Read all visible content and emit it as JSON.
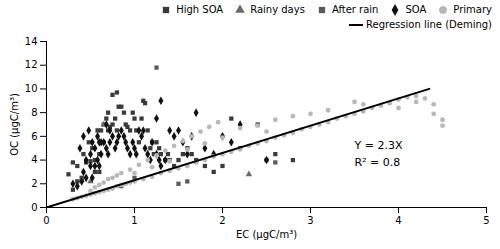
{
  "chart_data": {
    "type": "scatter",
    "xlabel": "EC (μgC/m³)",
    "ylabel": "OC (μgC/m³)",
    "xlim": [
      0,
      5
    ],
    "ylim": [
      0,
      14
    ],
    "xticks": [
      0,
      1,
      2,
      3,
      4,
      5
    ],
    "yticks": [
      0,
      2,
      4,
      6,
      8,
      10,
      12,
      14
    ],
    "grid": false,
    "legend": "top right",
    "annotations": [
      {
        "text": "Y = 2.3X",
        "x": 3.5,
        "y": 5.2
      },
      {
        "text": "R² = 0.8",
        "x": 3.5,
        "y": 3.8
      }
    ],
    "series": [
      {
        "name": "High SOA",
        "type": "scatter",
        "marker": "square",
        "color": "#3a3a3a",
        "x": [
          0.25,
          0.3,
          0.35,
          0.4,
          0.45,
          0.5,
          0.52,
          0.55,
          0.58,
          0.6,
          0.62,
          0.65,
          0.68,
          0.7,
          0.72,
          0.75,
          0.78,
          0.8,
          0.82,
          0.85,
          0.88,
          0.9,
          0.92,
          0.95,
          0.98,
          1.0,
          1.02,
          1.05,
          1.08,
          1.1,
          1.12,
          1.15,
          1.18,
          1.2,
          1.22,
          1.25,
          1.28,
          1.3,
          1.35,
          1.38,
          1.4,
          1.45,
          1.5,
          1.55,
          1.6,
          1.65,
          1.7,
          1.8,
          1.9,
          2.0,
          2.1,
          2.2,
          2.4,
          2.6,
          2.8,
          0.3,
          0.35,
          0.42,
          0.48,
          0.55,
          0.6,
          0.65,
          0.7,
          0.75,
          0.8
        ],
        "values": [
          2.8,
          3.8,
          2.2,
          2.5,
          3.8,
          3.9,
          5.0,
          4.0,
          6.5,
          4.5,
          6.5,
          7.0,
          7.5,
          8.0,
          6.8,
          9.5,
          7.5,
          9.7,
          8.5,
          8.5,
          8.0,
          7.0,
          6.8,
          6.5,
          8.0,
          7.5,
          6.5,
          5.5,
          7.5,
          9.0,
          8.8,
          6.5,
          5.0,
          5.5,
          4.5,
          5.5,
          5.0,
          4.5,
          4.0,
          4.5,
          4.0,
          3.5,
          4.0,
          4.5,
          5.0,
          4.5,
          4.0,
          3.5,
          3.0,
          3.5,
          7.5,
          5.0,
          7.0,
          4.5,
          4.0,
          1.5,
          3.5,
          4.5,
          5.5,
          3.0,
          3.0,
          5.5,
          6.5,
          7.0,
          6.5
        ]
      },
      {
        "name": "Rainy days",
        "type": "scatter",
        "marker": "triangle",
        "color": "#6a6a6a",
        "x": [
          0.4,
          0.5,
          0.65,
          2.3
        ],
        "values": [
          2.3,
          2.2,
          7.0,
          2.8
        ]
      },
      {
        "name": "After rain",
        "type": "scatter",
        "marker": "square",
        "color": "#5a5a5a",
        "x": [
          1.25,
          1.5,
          1.6,
          2.6,
          0.85,
          1.0,
          2.5
        ],
        "values": [
          11.8,
          2.0,
          2.2,
          3.8,
          1.8,
          2.5,
          4.0
        ]
      },
      {
        "name": "SOA",
        "type": "scatter",
        "marker": "diamond",
        "color": "#111111",
        "x": [
          0.3,
          0.35,
          0.4,
          0.42,
          0.45,
          0.5,
          0.52,
          0.55,
          0.58,
          0.6,
          0.62,
          0.65,
          0.68,
          0.7,
          0.72,
          0.75,
          0.78,
          0.8,
          0.82,
          0.85,
          0.88,
          0.9,
          0.92,
          0.95,
          0.98,
          1.0,
          1.02,
          1.05,
          1.08,
          1.1,
          1.12,
          1.15,
          1.18,
          1.2,
          1.25,
          1.28,
          1.3,
          1.35,
          1.4,
          1.45,
          1.5,
          1.55,
          1.6,
          1.65,
          1.7,
          1.8,
          1.9,
          2.0,
          2.1,
          2.2,
          2.5,
          0.45,
          0.5,
          0.55,
          0.6,
          1.25,
          1.3,
          0.38,
          0.42,
          0.48,
          0.52,
          0.58,
          0.62,
          0.68,
          0.72
        ],
        "values": [
          2.0,
          1.8,
          2.2,
          3.0,
          2.5,
          3.5,
          2.5,
          3.5,
          4.0,
          3.5,
          4.5,
          5.5,
          5.0,
          4.5,
          5.5,
          6.0,
          5.0,
          5.5,
          6.0,
          6.5,
          6.0,
          5.5,
          5.0,
          4.5,
          5.5,
          5.0,
          4.5,
          6.5,
          6.0,
          6.5,
          5.0,
          4.5,
          4.0,
          5.5,
          4.5,
          4.0,
          3.5,
          4.0,
          6.5,
          6.0,
          6.5,
          5.5,
          4.5,
          6.0,
          8.0,
          5.0,
          4.5,
          6.0,
          5.5,
          7.0,
          4.0,
          4.0,
          4.5,
          5.0,
          5.5,
          7.5,
          9.0,
          5.0,
          6.0,
          6.5,
          5.5,
          6.0,
          5.5,
          7.0,
          6.5
        ]
      },
      {
        "name": "Primary",
        "type": "scatter",
        "marker": "circle",
        "color": "#b8b8b8",
        "x": [
          0.3,
          0.35,
          0.4,
          0.45,
          0.5,
          0.55,
          0.6,
          0.65,
          0.7,
          0.75,
          0.8,
          0.85,
          0.9,
          0.95,
          1.0,
          1.1,
          1.2,
          1.3,
          1.4,
          1.5,
          1.6,
          1.7,
          1.8,
          1.9,
          2.0,
          2.1,
          2.2,
          2.3,
          2.4,
          2.5,
          2.6,
          2.7,
          2.8,
          2.9,
          3.0,
          3.1,
          3.2,
          3.3,
          3.4,
          3.5,
          3.6,
          3.7,
          3.8,
          3.9,
          4.0,
          4.1,
          4.2,
          4.3,
          4.4,
          4.5,
          0.5,
          0.6,
          0.7,
          0.8,
          1.0,
          1.2,
          1.4,
          1.6,
          1.8,
          2.0,
          2.5,
          3.0,
          3.5,
          4.0,
          4.5,
          0.55,
          0.65,
          0.75,
          0.85,
          0.95,
          1.05,
          1.15,
          1.25,
          1.35,
          1.45,
          1.55,
          1.65,
          1.75,
          1.85,
          1.95,
          2.2,
          2.4,
          2.6,
          2.8,
          3.2,
          3.6,
          4.2,
          4.4
        ],
        "values": [
          0.7,
          0.8,
          0.9,
          1.0,
          1.1,
          1.2,
          1.3,
          1.4,
          1.5,
          1.6,
          1.8,
          1.9,
          2.0,
          2.1,
          2.2,
          2.4,
          2.6,
          2.9,
          3.1,
          3.3,
          3.5,
          3.8,
          4.0,
          4.3,
          4.5,
          4.7,
          4.9,
          5.2,
          5.4,
          5.6,
          5.9,
          6.1,
          6.3,
          6.6,
          6.8,
          7.0,
          7.2,
          7.5,
          7.7,
          7.9,
          8.1,
          8.4,
          8.6,
          8.8,
          9.1,
          9.3,
          9.4,
          9.2,
          8.7,
          7.4,
          1.4,
          1.9,
          2.4,
          2.7,
          2.9,
          3.4,
          3.9,
          4.9,
          5.4,
          5.9,
          6.4,
          7.9,
          8.9,
          8.4,
          6.9,
          1.7,
          2.1,
          2.5,
          2.9,
          3.2,
          3.6,
          4.0,
          4.4,
          4.8,
          5.2,
          5.6,
          6.0,
          6.4,
          6.8,
          7.2,
          6.7,
          6.9,
          7.4,
          7.7,
          8.2,
          8.7,
          8.9,
          7.9
        ]
      },
      {
        "name": "Regression line (Deming)",
        "type": "line",
        "line_style": "solid",
        "color": "#000000",
        "x": [
          0,
          4.35
        ],
        "values": [
          0,
          10.005
        ]
      }
    ]
  }
}
